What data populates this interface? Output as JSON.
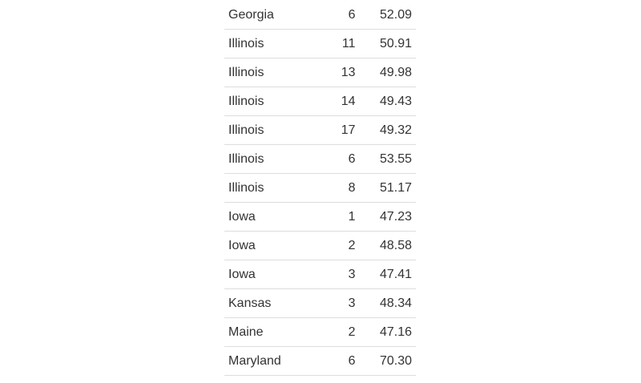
{
  "table": {
    "rows": [
      {
        "state": "Georgia",
        "district": "6",
        "value": "52.09"
      },
      {
        "state": "Illinois",
        "district": "11",
        "value": "50.91"
      },
      {
        "state": "Illinois",
        "district": "13",
        "value": "49.98"
      },
      {
        "state": "Illinois",
        "district": "14",
        "value": "49.43"
      },
      {
        "state": "Illinois",
        "district": "17",
        "value": "49.32"
      },
      {
        "state": "Illinois",
        "district": "6",
        "value": "53.55"
      },
      {
        "state": "Illinois",
        "district": "8",
        "value": "51.17"
      },
      {
        "state": "Iowa",
        "district": "1",
        "value": "47.23"
      },
      {
        "state": "Iowa",
        "district": "2",
        "value": "48.58"
      },
      {
        "state": "Iowa",
        "district": "3",
        "value": "47.41"
      },
      {
        "state": "Kansas",
        "district": "3",
        "value": "48.34"
      },
      {
        "state": "Maine",
        "district": "2",
        "value": "47.16"
      },
      {
        "state": "Maryland",
        "district": "6",
        "value": "70.30"
      }
    ]
  }
}
